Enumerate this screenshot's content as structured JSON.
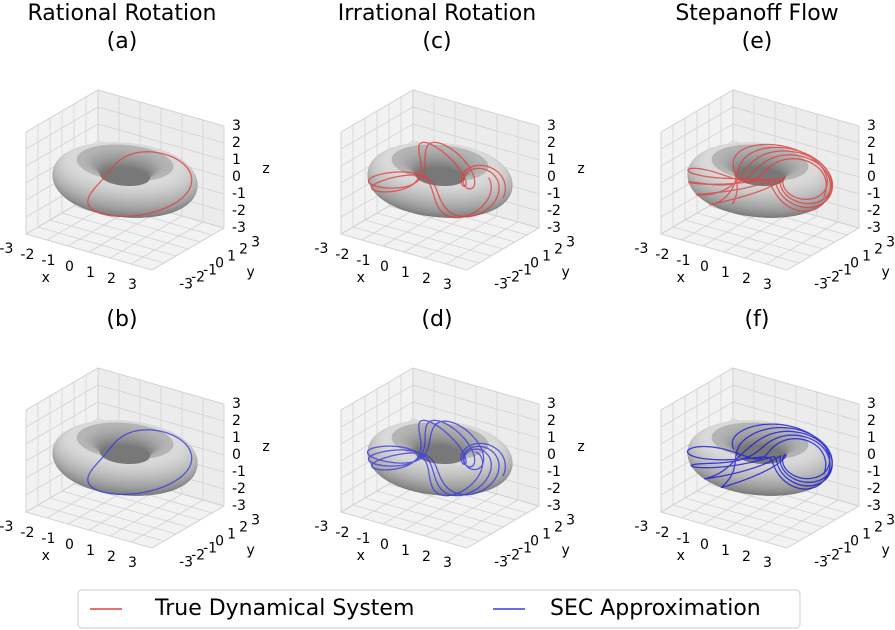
{
  "chart_data": [
    {
      "type": "3d-torus",
      "title": "Rational Rotation",
      "subtitle": "(a)",
      "series_color": "#e04040",
      "xlabel": "x",
      "ylabel": "y",
      "zlabel": "z",
      "xlim": [
        -3,
        3
      ],
      "ylim": [
        -3,
        3
      ],
      "zlim": [
        -3,
        3
      ],
      "xticks": [
        -3,
        -2,
        -1,
        0,
        1,
        2,
        3
      ],
      "yticks": [
        -3,
        -2,
        -1,
        0,
        1,
        2,
        3
      ],
      "zticks": [
        -3,
        -2,
        -1,
        0,
        1,
        2,
        3
      ]
    },
    {
      "type": "3d-torus",
      "subtitle": "(b)",
      "series_color": "#3a3ae0",
      "xlabel": "x",
      "ylabel": "y",
      "zlabel": "z",
      "xlim": [
        -3,
        3
      ],
      "ylim": [
        -3,
        3
      ],
      "zlim": [
        -3,
        3
      ],
      "xticks": [
        -3,
        -2,
        -1,
        0,
        1,
        2,
        3
      ],
      "yticks": [
        -3,
        -2,
        -1,
        0,
        1,
        2,
        3
      ],
      "zticks": [
        -3,
        -2,
        -1,
        0,
        1,
        2,
        3
      ]
    },
    {
      "type": "3d-torus",
      "title": "Irrational Rotation",
      "subtitle": "(c)",
      "series_color": "#e04040",
      "xlabel": "x",
      "ylabel": "y",
      "zlabel": "z",
      "xlim": [
        -3,
        3
      ],
      "ylim": [
        -3,
        3
      ],
      "zlim": [
        -3,
        3
      ],
      "xticks": [
        -3,
        -2,
        -1,
        0,
        1,
        2,
        3
      ],
      "yticks": [
        -3,
        -2,
        -1,
        0,
        1,
        2,
        3
      ],
      "zticks": [
        -3,
        -2,
        -1,
        0,
        1,
        2,
        3
      ]
    },
    {
      "type": "3d-torus",
      "subtitle": "(d)",
      "series_color": "#3a3ae0",
      "xlabel": "x",
      "ylabel": "y",
      "zlabel": "z",
      "xlim": [
        -3,
        3
      ],
      "ylim": [
        -3,
        3
      ],
      "zlim": [
        -3,
        3
      ],
      "xticks": [
        -3,
        -2,
        -1,
        0,
        1,
        2,
        3
      ],
      "yticks": [
        -3,
        -2,
        -1,
        0,
        1,
        2,
        3
      ],
      "zticks": [
        -3,
        -2,
        -1,
        0,
        1,
        2,
        3
      ]
    },
    {
      "type": "3d-torus",
      "title": "Stepanoff Flow",
      "subtitle": "(e)",
      "series_color": "#e04040",
      "xlabel": "x",
      "ylabel": "y",
      "zlabel": "z",
      "xlim": [
        -3,
        3
      ],
      "ylim": [
        -3,
        3
      ],
      "zlim": [
        -3,
        3
      ],
      "xticks": [
        -3,
        -2,
        -1,
        0,
        1,
        2,
        3
      ],
      "yticks": [
        -3,
        -2,
        -1,
        0,
        1,
        2,
        3
      ],
      "zticks": [
        -3,
        -2,
        -1,
        0,
        1,
        2,
        3
      ]
    },
    {
      "type": "3d-torus",
      "subtitle": "(f)",
      "series_color": "#1a1ad8",
      "xlabel": "x",
      "ylabel": "y",
      "zlabel": "z",
      "xlim": [
        -3,
        3
      ],
      "ylim": [
        -3,
        3
      ],
      "zlim": [
        -3,
        3
      ],
      "xticks": [
        -3,
        -2,
        -1,
        0,
        1,
        2,
        3
      ],
      "yticks": [
        -3,
        -2,
        -1,
        0,
        1,
        2,
        3
      ],
      "zticks": [
        -3,
        -2,
        -1,
        0,
        1,
        2,
        3
      ]
    }
  ],
  "legend": [
    {
      "name": "True Dynamical System",
      "color": "#e04040"
    },
    {
      "name": "SEC Approximation",
      "color": "#3a3ae0"
    }
  ]
}
